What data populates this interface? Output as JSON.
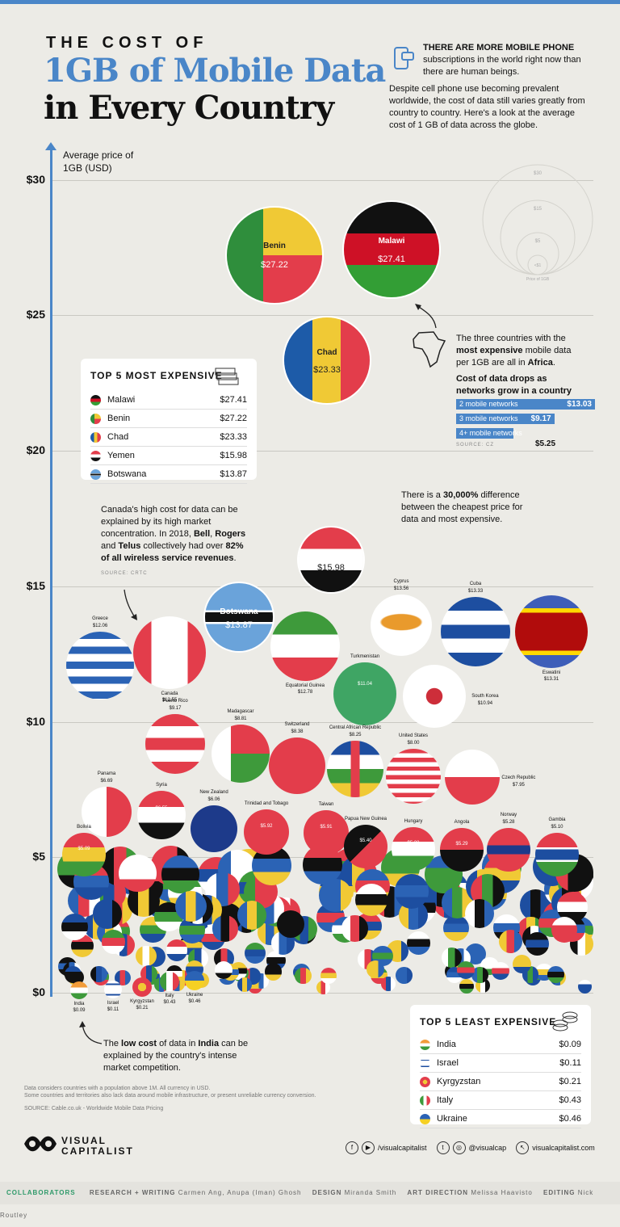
{
  "header": {
    "small_title": "THE COST OF",
    "title_line1": "1GB of Mobile Data",
    "title_line2": "in Every Country"
  },
  "intro": {
    "bold": "THERE ARE MORE MOBILE PHONE",
    "line1": "subscriptions in the world right now than there are human beings.",
    "para2": "Despite cell phone use becoming prevalent worldwide, the cost of data still varies greatly from country to country. Here's a look at the average cost of 1 GB of data across the globe."
  },
  "size_legend": {
    "labels": [
      "$30",
      "$15",
      "$5",
      "<$1"
    ],
    "caption": "Price of 1GB"
  },
  "most_expensive": {
    "title": "TOP 5 MOST EXPENSIVE",
    "rows": [
      {
        "name": "Malawi",
        "value": "$27.41"
      },
      {
        "name": "Benin",
        "value": "$27.22"
      },
      {
        "name": "Chad",
        "value": "$23.33"
      },
      {
        "name": "Yemen",
        "value": "$15.98"
      },
      {
        "name": "Botswana",
        "value": "$13.87"
      }
    ]
  },
  "least_expensive": {
    "title": "TOP 5 LEAST EXPENSIVE",
    "rows": [
      {
        "name": "India",
        "value": "$0.09"
      },
      {
        "name": "Israel",
        "value": "$0.11"
      },
      {
        "name": "Kyrgyzstan",
        "value": "$0.21"
      },
      {
        "name": "Italy",
        "value": "$0.43"
      },
      {
        "name": "Ukraine",
        "value": "$0.46"
      }
    ]
  },
  "africa_note": {
    "text_a": "The three countries with the ",
    "bold_a": "most expensive",
    "text_b": " mobile data per 1GB are all in ",
    "bold_b": "Africa",
    "text_c": ".",
    "networks_title": "Cost of data drops as networks grow in a country",
    "bars": [
      {
        "label": "2 mobile networks",
        "value": "$13.03",
        "frac": 1.0
      },
      {
        "label": "3 mobile networks",
        "value": "$9.17",
        "frac": 0.7
      },
      {
        "label": "4+ mobile networks",
        "value": "$5.25",
        "frac": 0.4
      }
    ],
    "source": "SOURCE: CZ"
  },
  "difference_note": {
    "text_a": "There is a ",
    "bold": "30,000%",
    "text_b": " difference between the cheapest price for data and most expensive."
  },
  "canada_note": {
    "text_a": "Canada's high cost for data can be explained by its high market concentration. In 2018, ",
    "bold_a": "Bell",
    "text_b": ", ",
    "bold_b": "Rogers",
    "text_c": " and ",
    "bold_c": "Telus",
    "text_d": " collectively had over ",
    "bold_d": "82% of all wireless service revenues",
    "text_e": ".",
    "source": "SOURCE: CRTC"
  },
  "india_note": {
    "text_a": "The ",
    "bold_a": "low cost",
    "text_b": " of data in ",
    "bold_b": "India",
    "text_c": " can be explained by the country's intense market competition."
  },
  "footnote": {
    "line1": "Data considers countries with a population above 1M. All currency in USD.",
    "line2": "Some countries and territories also lack data around mobile infrastructure, or present unreliable currency conversion.",
    "source": "SOURCE: Cable.co.uk - Worldwide Mobile Data Pricing"
  },
  "brand": {
    "line1": "VISUAL",
    "line2": "CAPITALIST"
  },
  "social": {
    "handle1": "/visualcapitalist",
    "handle2": "@visualcap",
    "site": "visualcapitalist.com"
  },
  "collaborators": {
    "label": "COLLABORATORS",
    "research_label": "RESEARCH + WRITING",
    "research": "Carmen Ang, Anupa (Iman) Ghosh",
    "design_label": "DESIGN",
    "design": "Miranda Smith",
    "art_label": "ART DIRECTION",
    "art": "Melissa Haavisto",
    "editing_label": "EDITING",
    "editing": "Nick Routley"
  },
  "chart_data": {
    "type": "scatter",
    "ylabel": "Average price of 1GB (USD)",
    "yticks": [
      "$30",
      "$25",
      "$20",
      "$15",
      "$10",
      "$5",
      "$0"
    ],
    "ylim": [
      0,
      30
    ],
    "points": [
      {
        "name": "Malawi",
        "label": "$27.41",
        "value": 27.41,
        "flag": "malawi"
      },
      {
        "name": "Benin",
        "label": "$27.22",
        "value": 27.22,
        "flag": "benin"
      },
      {
        "name": "Chad",
        "label": "$23.33",
        "value": 23.33,
        "flag": "chad"
      },
      {
        "name": "Yemen",
        "label": "$15.98",
        "value": 15.98,
        "flag": "yemen"
      },
      {
        "name": "Botswana",
        "label": "$13.87",
        "value": 13.87,
        "flag": "botswana"
      },
      {
        "name": "Cyprus",
        "label": "$13.56",
        "value": 13.56,
        "flag": "cyprus"
      },
      {
        "name": "Cuba",
        "label": "$13.33",
        "value": 13.33,
        "flag": "cuba"
      },
      {
        "name": "Eswatini",
        "label": "$13.31",
        "value": 13.31,
        "flag": "eswatini"
      },
      {
        "name": "Equatorial Guinea",
        "label": "$12.78",
        "value": 12.78,
        "flag": "eqguinea"
      },
      {
        "name": "Canada",
        "label": "$12.55",
        "value": 12.55,
        "flag": "canada"
      },
      {
        "name": "Greece",
        "label": "$12.06",
        "value": 12.06,
        "flag": "greece"
      },
      {
        "name": "Turkmenistan",
        "label": "$11.04",
        "value": 11.04,
        "flag": "turkmenistan"
      },
      {
        "name": "South Korea",
        "label": "$10.94",
        "value": 10.94,
        "flag": "korea"
      },
      {
        "name": "Puerto Rico",
        "label": "$9.17",
        "value": 9.17,
        "flag": "puertorico"
      },
      {
        "name": "Madagascar",
        "label": "$8.81",
        "value": 8.81,
        "flag": "madagascar"
      },
      {
        "name": "Switzerland",
        "label": "$8.38",
        "value": 8.38,
        "flag": "switzerland"
      },
      {
        "name": "Central African Republic",
        "label": "$8.25",
        "value": 8.25,
        "flag": "car"
      },
      {
        "name": "United States",
        "label": "$8.00",
        "value": 8.0,
        "flag": "usa"
      },
      {
        "name": "Czech Republic",
        "label": "$7.95",
        "value": 7.95,
        "flag": "czech"
      },
      {
        "name": "Panama",
        "label": "$6.69",
        "value": 6.69,
        "flag": "panama"
      },
      {
        "name": "Syria",
        "label": "$6.55",
        "value": 6.55,
        "flag": "syria"
      },
      {
        "name": "New Zealand",
        "label": "$6.06",
        "value": 6.06,
        "flag": "nz"
      },
      {
        "name": "Trinidad and Tobago",
        "label": "$5.92",
        "value": 5.92,
        "flag": "trinidad"
      },
      {
        "name": "Taiwan",
        "label": "$5.91",
        "value": 5.91,
        "flag": "taiwan"
      },
      {
        "name": "Papua New Guinea",
        "label": "$5.40",
        "value": 5.4,
        "flag": "png"
      },
      {
        "name": "Hungary",
        "label": "$5.32",
        "value": 5.32,
        "flag": "hungary"
      },
      {
        "name": "Angola",
        "label": "$5.29",
        "value": 5.29,
        "flag": "angola"
      },
      {
        "name": "Norway",
        "label": "$5.28",
        "value": 5.28,
        "flag": "norway"
      },
      {
        "name": "Gambia",
        "label": "$5.10",
        "value": 5.1,
        "flag": "gambia"
      },
      {
        "name": "Bolivia",
        "label": "$5.09",
        "value": 5.09,
        "flag": "bolivia"
      },
      {
        "name": "India",
        "label": "$0.09",
        "value": 0.09,
        "flag": "india"
      },
      {
        "name": "Israel",
        "label": "$0.11",
        "value": 0.11,
        "flag": "israel"
      },
      {
        "name": "Kyrgyzstan",
        "label": "$0.21",
        "value": 0.21,
        "flag": "kyrgyzstan"
      },
      {
        "name": "Italy",
        "label": "$0.43",
        "value": 0.43,
        "flag": "italy"
      },
      {
        "name": "Ukraine",
        "label": "$0.46",
        "value": 0.46,
        "flag": "ukraine"
      }
    ]
  }
}
